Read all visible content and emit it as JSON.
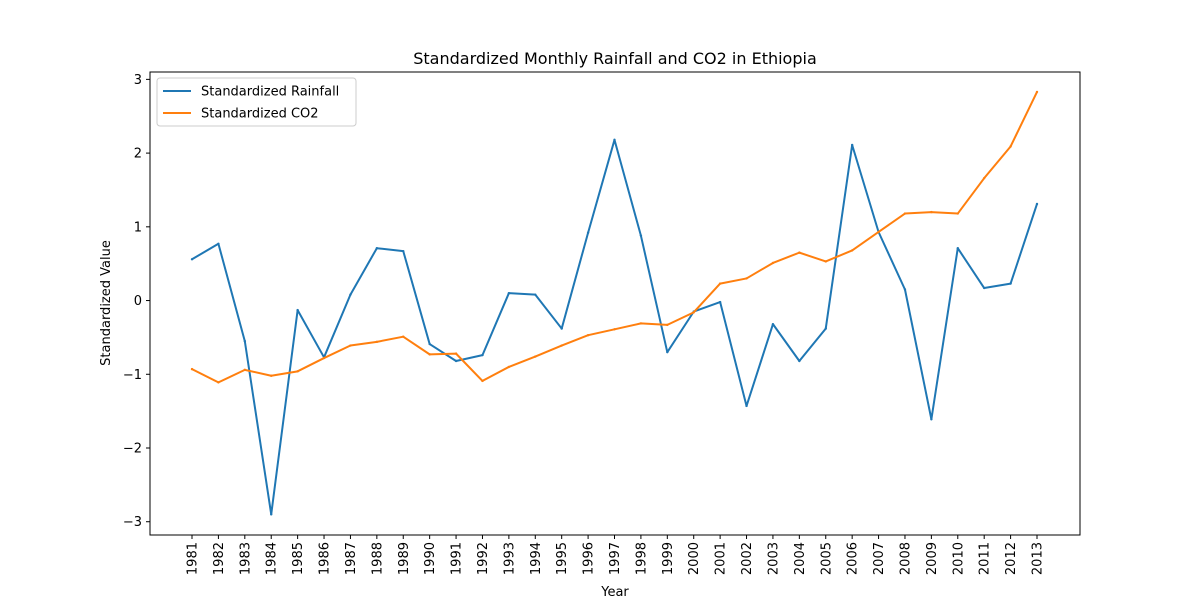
{
  "chart_data": {
    "type": "line",
    "title": "Standardized Monthly Rainfall and CO2 in Ethiopia",
    "xlabel": "Year",
    "ylabel": "Standardized Value",
    "x": [
      "1981",
      "1982",
      "1983",
      "1984",
      "1985",
      "1986",
      "1987",
      "1988",
      "1989",
      "1990",
      "1991",
      "1992",
      "1993",
      "1994",
      "1995",
      "1996",
      "1997",
      "1998",
      "1999",
      "2000",
      "2001",
      "2002",
      "2003",
      "2004",
      "2005",
      "2006",
      "2007",
      "2008",
      "2009",
      "2010",
      "2011",
      "2012",
      "2013"
    ],
    "yticks": [
      "−3",
      "−2",
      "−1",
      "0",
      "1",
      "2",
      "3"
    ],
    "ylim": [
      -3.18,
      3.1
    ],
    "legend_position": "top-left",
    "grid": false,
    "series": [
      {
        "name": "Standardized Rainfall",
        "color": "#1f77b4",
        "values": [
          0.56,
          0.77,
          -0.55,
          -2.9,
          -0.13,
          -0.77,
          0.08,
          0.71,
          0.67,
          -0.59,
          -0.82,
          -0.74,
          0.1,
          0.08,
          -0.38,
          0.92,
          2.18,
          0.88,
          -0.7,
          -0.15,
          -0.02,
          -1.43,
          -0.32,
          -0.82,
          -0.38,
          2.11,
          0.93,
          0.15,
          -1.61,
          0.71,
          0.17,
          0.23,
          1.31
        ]
      },
      {
        "name": "Standardized CO2",
        "color": "#ff7f0e",
        "values": [
          -0.93,
          -1.11,
          -0.94,
          -1.02,
          -0.96,
          -0.78,
          -0.61,
          -0.56,
          -0.49,
          -0.73,
          -0.72,
          -1.09,
          -0.9,
          -0.76,
          -0.61,
          -0.47,
          -0.39,
          -0.31,
          -0.33,
          -0.16,
          0.23,
          0.3,
          0.51,
          0.65,
          0.53,
          0.68,
          0.93,
          1.18,
          1.2,
          1.18,
          1.66,
          2.09,
          2.83
        ]
      }
    ]
  }
}
